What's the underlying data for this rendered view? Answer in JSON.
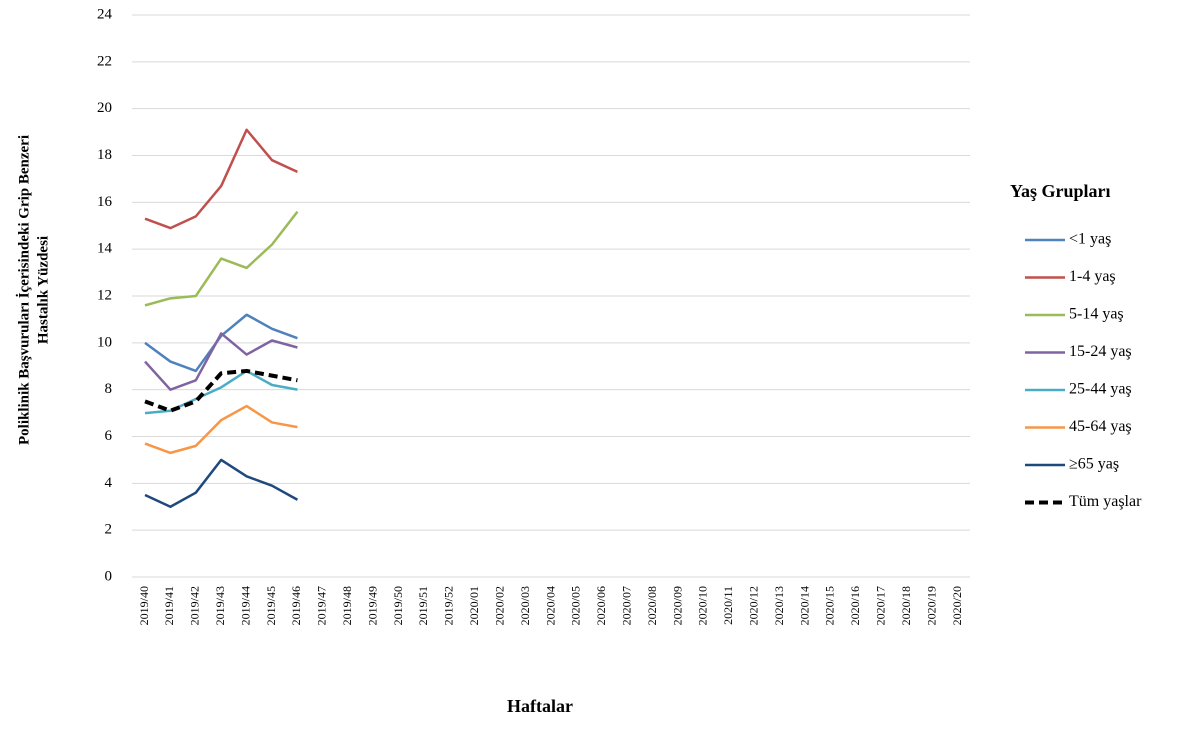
{
  "chart_data": {
    "type": "line",
    "ylabel": [
      "Poliklinik Başvuruları İçerisindeki Grip Benzeri",
      "Hastalık Yüzdesi"
    ],
    "xlabel": "Haftalar",
    "legend_title": "Yaş Grupları",
    "legend": "right",
    "grid": true,
    "ylim": [
      0,
      24
    ],
    "yticks": [
      0,
      2,
      4,
      6,
      8,
      10,
      12,
      14,
      16,
      18,
      20,
      22,
      24
    ],
    "categories": [
      "2019/40",
      "2019/41",
      "2019/42",
      "2019/43",
      "2019/44",
      "2019/45",
      "2019/46",
      "2019/47",
      "2019/48",
      "2019/49",
      "2019/50",
      "2019/51",
      "2019/52",
      "2020/01",
      "2020/02",
      "2020/03",
      "2020/04",
      "2020/05",
      "2020/06",
      "2020/07",
      "2020/08",
      "2020/09",
      "2020/10",
      "2020/11",
      "2020/12",
      "2020/13",
      "2020/14",
      "2020/15",
      "2020/16",
      "2020/17",
      "2020/18",
      "2020/19",
      "2020/20"
    ],
    "series": [
      {
        "name": "<1 yaş",
        "color": "#4f81bd",
        "values": [
          10.0,
          9.2,
          8.8,
          10.3,
          11.2,
          10.6,
          10.2,
          null,
          null,
          null,
          null,
          null,
          null,
          null,
          null,
          null,
          null,
          null,
          null,
          null,
          null,
          null,
          null,
          null,
          null,
          null,
          null,
          null,
          null,
          null,
          null,
          null,
          null
        ]
      },
      {
        "name": "1-4 yaş",
        "color": "#c0504d",
        "values": [
          15.3,
          14.9,
          15.4,
          16.7,
          19.1,
          17.8,
          17.3,
          null,
          null,
          null,
          null,
          null,
          null,
          null,
          null,
          null,
          null,
          null,
          null,
          null,
          null,
          null,
          null,
          null,
          null,
          null,
          null,
          null,
          null,
          null,
          null,
          null,
          null
        ]
      },
      {
        "name": "5-14 yaş",
        "color": "#9bbb59",
        "values": [
          11.6,
          11.9,
          12.0,
          13.6,
          13.2,
          14.2,
          15.6,
          null,
          null,
          null,
          null,
          null,
          null,
          null,
          null,
          null,
          null,
          null,
          null,
          null,
          null,
          null,
          null,
          null,
          null,
          null,
          null,
          null,
          null,
          null,
          null,
          null,
          null
        ]
      },
      {
        "name": "15-24 yaş",
        "color": "#8064a2",
        "values": [
          9.2,
          8.0,
          8.4,
          10.4,
          9.5,
          10.1,
          9.8,
          null,
          null,
          null,
          null,
          null,
          null,
          null,
          null,
          null,
          null,
          null,
          null,
          null,
          null,
          null,
          null,
          null,
          null,
          null,
          null,
          null,
          null,
          null,
          null,
          null,
          null
        ]
      },
      {
        "name": "25-44 yaş",
        "color": "#4bacc6",
        "values": [
          7.0,
          7.1,
          7.6,
          8.1,
          8.8,
          8.2,
          8.0,
          null,
          null,
          null,
          null,
          null,
          null,
          null,
          null,
          null,
          null,
          null,
          null,
          null,
          null,
          null,
          null,
          null,
          null,
          null,
          null,
          null,
          null,
          null,
          null,
          null,
          null
        ]
      },
      {
        "name": "45-64 yaş",
        "color": "#f79646",
        "values": [
          5.7,
          5.3,
          5.6,
          6.7,
          7.3,
          6.6,
          6.4,
          null,
          null,
          null,
          null,
          null,
          null,
          null,
          null,
          null,
          null,
          null,
          null,
          null,
          null,
          null,
          null,
          null,
          null,
          null,
          null,
          null,
          null,
          null,
          null,
          null,
          null
        ]
      },
      {
        "name": "≥65 yaş",
        "color": "#1f497d",
        "values": [
          3.5,
          3.0,
          3.6,
          5.0,
          4.3,
          3.9,
          3.3,
          null,
          null,
          null,
          null,
          null,
          null,
          null,
          null,
          null,
          null,
          null,
          null,
          null,
          null,
          null,
          null,
          null,
          null,
          null,
          null,
          null,
          null,
          null,
          null,
          null,
          null
        ]
      },
      {
        "name": "Tüm yaşlar",
        "color": "#000000",
        "dashed": true,
        "values": [
          7.5,
          7.1,
          7.5,
          8.7,
          8.8,
          8.6,
          8.4,
          null,
          null,
          null,
          null,
          null,
          null,
          null,
          null,
          null,
          null,
          null,
          null,
          null,
          null,
          null,
          null,
          null,
          null,
          null,
          null,
          null,
          null,
          null,
          null,
          null,
          null
        ]
      }
    ]
  }
}
